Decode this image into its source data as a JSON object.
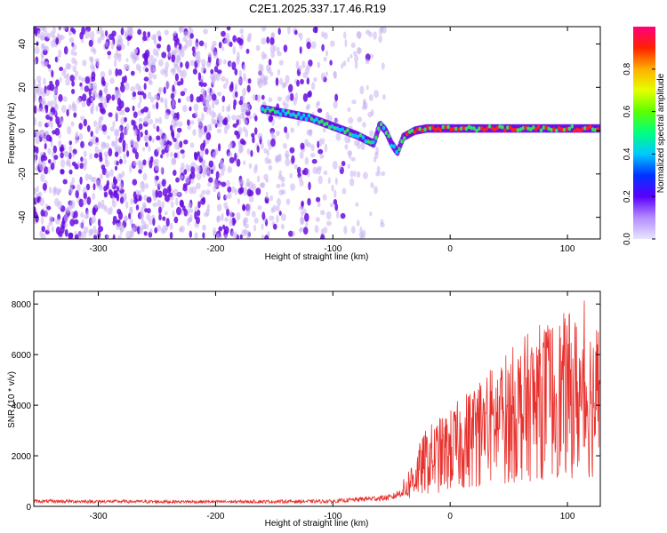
{
  "title": "C2E1.2025.337.17.46.R19",
  "colors": {
    "snr_line": "#e8312d",
    "dots_dense": "#6a0de0",
    "dots_light": "#c9b0f0",
    "trace_mid": "#00c8ff",
    "trace_green": "#33e060",
    "trace_hot": "#ff2020"
  },
  "chart_data": [
    {
      "type": "heatmap",
      "name": "spectrogram",
      "xlabel": "Height of straight line (km)",
      "ylabel": "Frequency (Hz)",
      "xlim": [
        -355,
        128
      ],
      "ylim": [
        -50,
        48
      ],
      "xticks": [
        -300,
        -200,
        -100,
        0,
        100
      ],
      "yticks": [
        -40,
        -20,
        0,
        20,
        40
      ],
      "grid": false,
      "colorbar": {
        "label": "Normalized spectral amplitude",
        "range": [
          0,
          1
        ],
        "ticks": [
          "0.0",
          "0.2",
          "0.4",
          "0.6",
          "0.8"
        ],
        "colormap": [
          "#e6e6ff",
          "#b58cff",
          "#5a00ff",
          "#0033ff",
          "#00c8ff",
          "#00ff80",
          "#5cff00",
          "#e6ff00",
          "#ffb000",
          "#ff2000",
          "#ff0080"
        ]
      },
      "trace": {
        "x": [
          -160,
          -140,
          -120,
          -100,
          -80,
          -65,
          -60,
          -55,
          -50,
          -45,
          -40,
          -30,
          -20,
          0,
          20,
          50,
          80,
          100,
          128
        ],
        "y": [
          10,
          8,
          6,
          2,
          -2,
          -6,
          3,
          0,
          -6,
          -10,
          -3,
          0,
          1,
          1,
          1,
          1,
          1,
          1,
          1
        ]
      }
    },
    {
      "type": "line",
      "name": "snr",
      "xlabel": "Height of straight line (km)",
      "ylabel": "SNR (10 * v/v)",
      "xlim": [
        -355,
        128
      ],
      "ylim": [
        0,
        8500
      ],
      "xticks": [
        -300,
        -200,
        -100,
        0,
        100
      ],
      "yticks": [
        0,
        2000,
        4000,
        6000,
        8000
      ],
      "grid": false,
      "envelope": {
        "x": [
          -355,
          -200,
          -100,
          -70,
          -50,
          -40,
          -30,
          -20,
          0,
          20,
          40,
          60,
          80,
          100,
          128
        ],
        "y": [
          200,
          180,
          200,
          300,
          350,
          600,
          1200,
          1800,
          2200,
          2800,
          3300,
          3800,
          4200,
          4400,
          4200
        ]
      }
    }
  ]
}
